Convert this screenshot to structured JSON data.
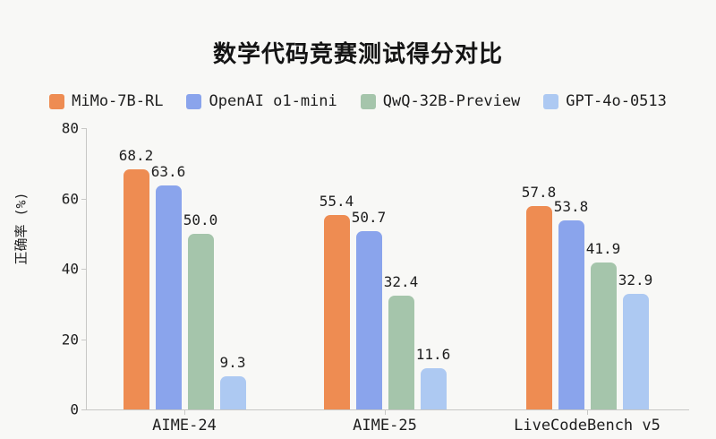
{
  "title": "数学代码竞赛测试得分对比",
  "chart_data": {
    "type": "bar",
    "title": "数学代码竞赛测试得分对比",
    "xlabel": "",
    "ylabel": "正确率 (%)",
    "ylim": [
      0,
      80
    ],
    "yticks": [
      0,
      20,
      40,
      60,
      80
    ],
    "grid": false,
    "legend_position": "top",
    "value_labels": true,
    "categories": [
      "AIME-24",
      "AIME-25",
      "LiveCodeBench v5"
    ],
    "series": [
      {
        "name": "MiMo-7B-RL",
        "color": "#EE8C52",
        "values": [
          68.2,
          55.4,
          57.8
        ]
      },
      {
        "name": "OpenAI o1-mini",
        "color": "#8AA4EC",
        "values": [
          63.6,
          50.7,
          53.8
        ]
      },
      {
        "name": "QwQ-32B-Preview",
        "color": "#A5C5AB",
        "values": [
          50.0,
          32.4,
          41.9
        ]
      },
      {
        "name": "GPT-4o-0513",
        "color": "#ADC9F2",
        "values": [
          9.3,
          11.6,
          32.9
        ]
      }
    ]
  },
  "colors": {
    "background": "#F8F8F6",
    "axis": "#C8C8C6",
    "text": "#1E1E1E",
    "title_text": "#141414"
  }
}
